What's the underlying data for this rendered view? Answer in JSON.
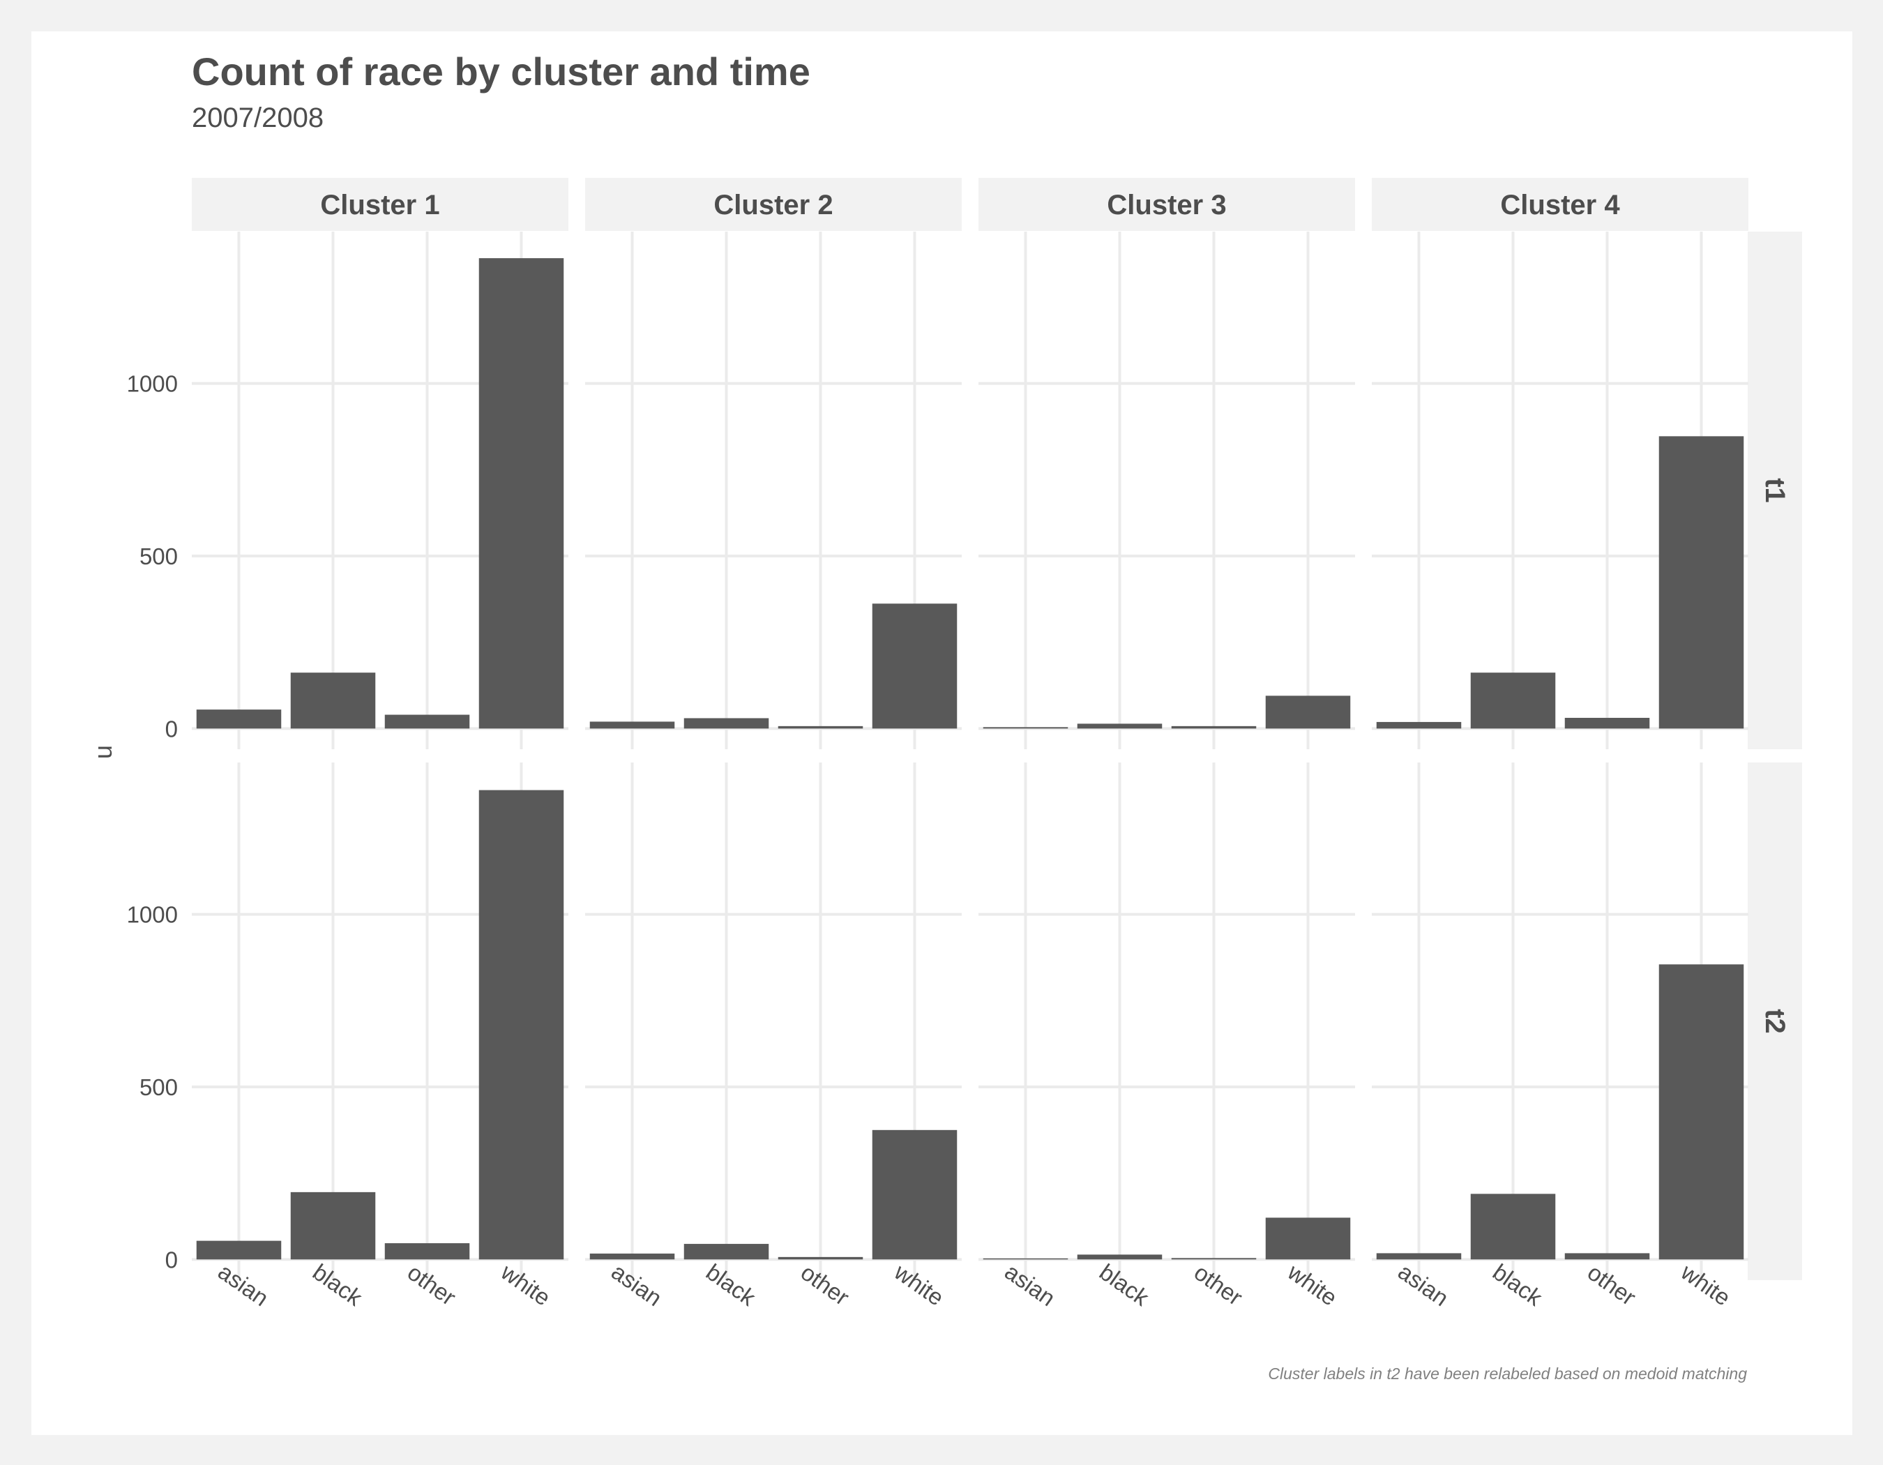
{
  "chart_data": {
    "type": "bar",
    "title": "Count of race by cluster and time",
    "subtitle": "2007/2008",
    "xlabel": "",
    "ylabel": "n",
    "caption": "Cluster labels in t2 have been relabeled based on medoid matching",
    "facet_columns": [
      "Cluster 1",
      "Cluster 2",
      "Cluster 3",
      "Cluster 4"
    ],
    "facet_rows": [
      "t1",
      "t2"
    ],
    "categories": [
      "asian",
      "black",
      "other",
      "white"
    ],
    "y_ticks": [
      0,
      500,
      1000
    ],
    "ylim": [
      -60,
      1440
    ],
    "grid": true,
    "bar_color": "#595959",
    "panels": [
      {
        "row": "t1",
        "column": "Cluster 1",
        "values": [
          55,
          162,
          40,
          1363
        ]
      },
      {
        "row": "t1",
        "column": "Cluster 2",
        "values": [
          20,
          30,
          7,
          362
        ]
      },
      {
        "row": "t1",
        "column": "Cluster 3",
        "values": [
          4,
          14,
          7,
          95
        ]
      },
      {
        "row": "t1",
        "column": "Cluster 4",
        "values": [
          19,
          162,
          31,
          847
        ]
      },
      {
        "row": "t2",
        "column": "Cluster 1",
        "values": [
          54,
          195,
          47,
          1360
        ]
      },
      {
        "row": "t2",
        "column": "Cluster 2",
        "values": [
          17,
          45,
          7,
          375
        ]
      },
      {
        "row": "t2",
        "column": "Cluster 3",
        "values": [
          3,
          14,
          4,
          121
        ]
      },
      {
        "row": "t2",
        "column": "Cluster 4",
        "values": [
          18,
          190,
          18,
          855
        ]
      }
    ]
  }
}
